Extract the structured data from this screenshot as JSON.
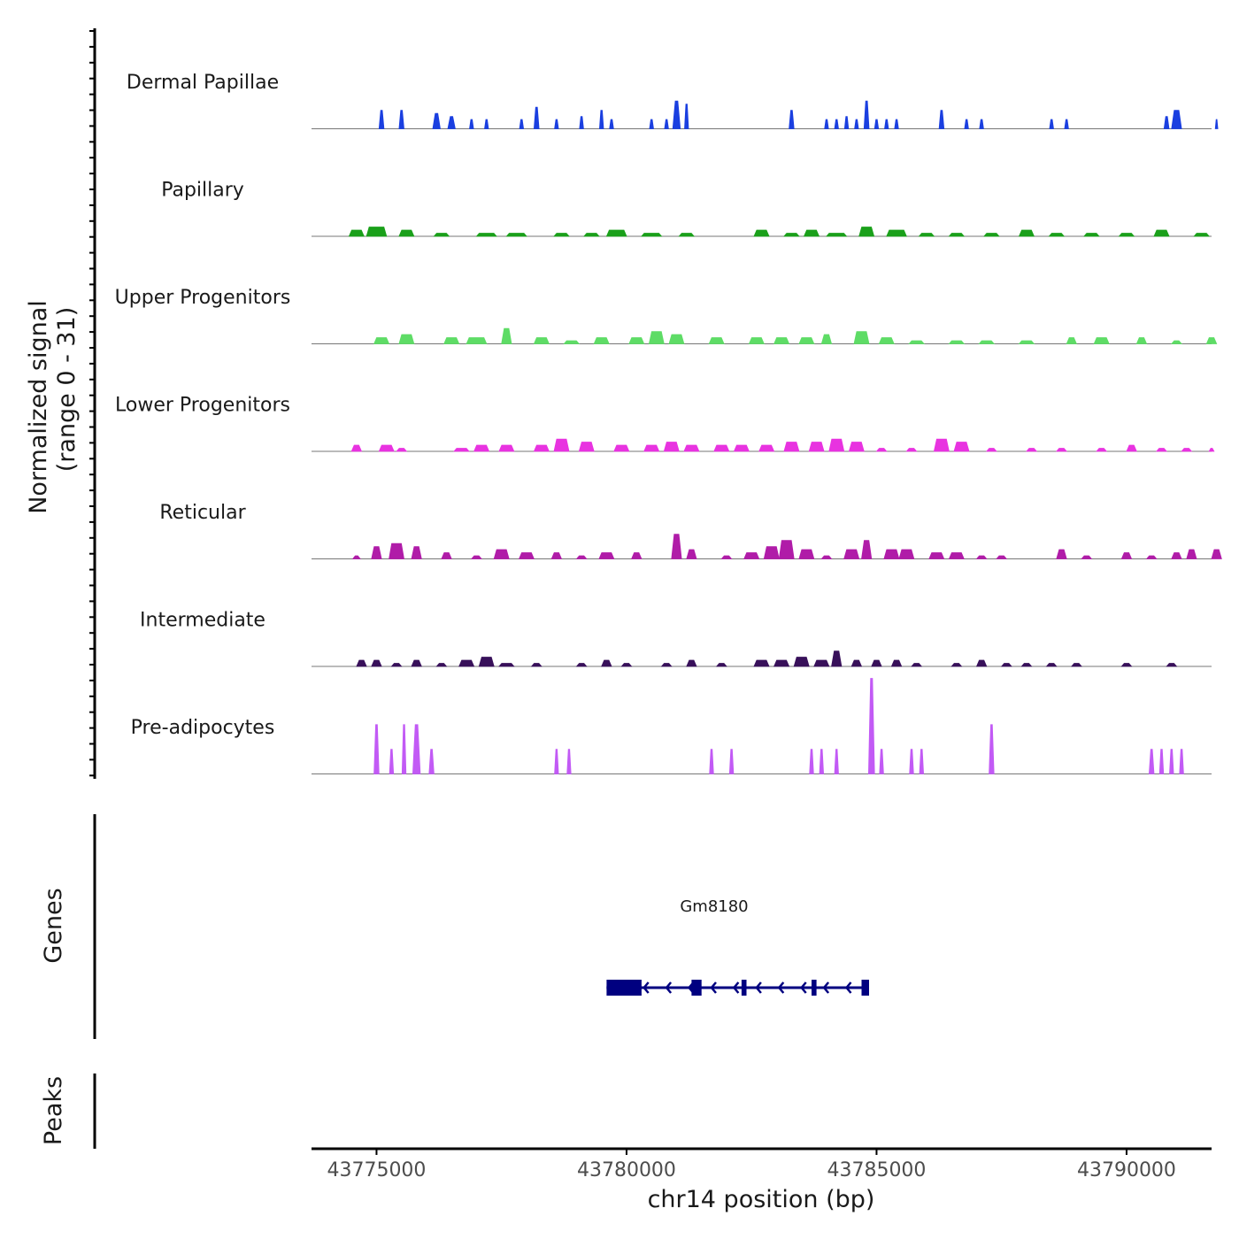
{
  "chart_data": {
    "type": "area",
    "y_axis_title": "Normalized signal",
    "y_axis_range_label": "(range 0 - 31)",
    "ylim": [
      0,
      31
    ],
    "xlabel": "chr14 position (bp)",
    "xlim": [
      43773700,
      43791700
    ],
    "x_ticks": [
      43775000,
      43780000,
      43785000,
      43790000
    ],
    "x_tick_labels": [
      "43775000",
      "43780000",
      "43785000",
      "43790000"
    ],
    "tracks": [
      {
        "name": "Dermal Papillae",
        "color": "#1a3fe0",
        "peaks": [
          [
            43775100,
            100,
            6
          ],
          [
            43775500,
            100,
            6
          ],
          [
            43776200,
            150,
            5
          ],
          [
            43776500,
            150,
            4
          ],
          [
            43776900,
            80,
            3
          ],
          [
            43777200,
            80,
            3
          ],
          [
            43777900,
            80,
            3
          ],
          [
            43778200,
            100,
            7
          ],
          [
            43778600,
            80,
            3
          ],
          [
            43779100,
            80,
            4
          ],
          [
            43779500,
            80,
            6
          ],
          [
            43779700,
            80,
            3
          ],
          [
            43780500,
            80,
            3
          ],
          [
            43780800,
            80,
            3
          ],
          [
            43781000,
            150,
            9
          ],
          [
            43781200,
            80,
            8
          ],
          [
            43783300,
            100,
            6
          ],
          [
            43784000,
            80,
            3
          ],
          [
            43784200,
            80,
            3
          ],
          [
            43784400,
            80,
            4
          ],
          [
            43784600,
            80,
            3
          ],
          [
            43784800,
            100,
            9
          ],
          [
            43785000,
            80,
            3
          ],
          [
            43785200,
            80,
            3
          ],
          [
            43785400,
            80,
            3
          ],
          [
            43786300,
            100,
            6
          ],
          [
            43786800,
            80,
            3
          ],
          [
            43787100,
            80,
            3
          ],
          [
            43788500,
            80,
            3
          ],
          [
            43788800,
            80,
            3
          ],
          [
            43790800,
            100,
            4
          ],
          [
            43791000,
            200,
            6
          ],
          [
            43791800,
            50,
            3
          ]
        ]
      },
      {
        "name": "Papillary",
        "color": "#1aa01a",
        "peaks": [
          [
            43774600,
            300,
            2
          ],
          [
            43775000,
            400,
            3
          ],
          [
            43775600,
            300,
            2
          ],
          [
            43776300,
            300,
            1
          ],
          [
            43777200,
            400,
            1
          ],
          [
            43777800,
            400,
            1
          ],
          [
            43778700,
            300,
            1
          ],
          [
            43779300,
            300,
            1
          ],
          [
            43779800,
            400,
            2
          ],
          [
            43780500,
            400,
            1
          ],
          [
            43781200,
            300,
            1
          ],
          [
            43782700,
            300,
            2
          ],
          [
            43783300,
            300,
            1
          ],
          [
            43783700,
            300,
            2
          ],
          [
            43784200,
            400,
            1
          ],
          [
            43784800,
            300,
            3
          ],
          [
            43785400,
            400,
            2
          ],
          [
            43786000,
            300,
            1
          ],
          [
            43786600,
            300,
            1
          ],
          [
            43787300,
            300,
            1
          ],
          [
            43788000,
            300,
            2
          ],
          [
            43788600,
            300,
            1
          ],
          [
            43789300,
            300,
            1
          ],
          [
            43790000,
            300,
            1
          ],
          [
            43790700,
            300,
            2
          ],
          [
            43791500,
            300,
            1
          ]
        ]
      },
      {
        "name": "Upper Progenitors",
        "color": "#5edc66",
        "peaks": [
          [
            43775100,
            300,
            2
          ],
          [
            43775600,
            300,
            3
          ],
          [
            43776500,
            300,
            2
          ],
          [
            43777000,
            400,
            2
          ],
          [
            43777600,
            200,
            5
          ],
          [
            43778300,
            300,
            2
          ],
          [
            43778900,
            300,
            1
          ],
          [
            43779500,
            300,
            2
          ],
          [
            43780200,
            300,
            2
          ],
          [
            43780600,
            300,
            4
          ],
          [
            43781000,
            300,
            3
          ],
          [
            43781800,
            300,
            2
          ],
          [
            43782600,
            300,
            2
          ],
          [
            43783100,
            300,
            2
          ],
          [
            43783600,
            300,
            2
          ],
          [
            43784000,
            200,
            3
          ],
          [
            43784700,
            300,
            4
          ],
          [
            43785200,
            300,
            2
          ],
          [
            43785800,
            300,
            1
          ],
          [
            43786600,
            300,
            1
          ],
          [
            43787200,
            300,
            1
          ],
          [
            43788000,
            300,
            1
          ],
          [
            43788900,
            200,
            2
          ],
          [
            43789500,
            300,
            2
          ],
          [
            43790300,
            200,
            2
          ],
          [
            43791000,
            200,
            1
          ],
          [
            43791700,
            200,
            2
          ]
        ]
      },
      {
        "name": "Lower Progenitors",
        "color": "#e833e0",
        "peaks": [
          [
            43774600,
            200,
            2
          ],
          [
            43775200,
            300,
            2
          ],
          [
            43775500,
            200,
            1
          ],
          [
            43776700,
            300,
            1
          ],
          [
            43777100,
            300,
            2
          ],
          [
            43777600,
            300,
            2
          ],
          [
            43778300,
            300,
            2
          ],
          [
            43778700,
            300,
            4
          ],
          [
            43779200,
            300,
            3
          ],
          [
            43779900,
            300,
            2
          ],
          [
            43780500,
            300,
            2
          ],
          [
            43780900,
            300,
            3
          ],
          [
            43781300,
            300,
            2
          ],
          [
            43781900,
            300,
            2
          ],
          [
            43782300,
            300,
            2
          ],
          [
            43782800,
            300,
            2
          ],
          [
            43783300,
            300,
            3
          ],
          [
            43783800,
            300,
            3
          ],
          [
            43784200,
            300,
            4
          ],
          [
            43784600,
            300,
            3
          ],
          [
            43785100,
            200,
            1
          ],
          [
            43785700,
            200,
            1
          ],
          [
            43786300,
            300,
            4
          ],
          [
            43786700,
            300,
            3
          ],
          [
            43787300,
            200,
            1
          ],
          [
            43788100,
            200,
            1
          ],
          [
            43788700,
            200,
            1
          ],
          [
            43789500,
            200,
            1
          ],
          [
            43790100,
            200,
            2
          ],
          [
            43790700,
            200,
            1
          ],
          [
            43791200,
            200,
            1
          ],
          [
            43791700,
            100,
            1
          ]
        ]
      },
      {
        "name": "Reticular",
        "color": "#b01ca8",
        "peaks": [
          [
            43774600,
            150,
            1
          ],
          [
            43775000,
            200,
            4
          ],
          [
            43775400,
            300,
            5
          ],
          [
            43775800,
            200,
            4
          ],
          [
            43776400,
            200,
            2
          ],
          [
            43777000,
            200,
            1
          ],
          [
            43777500,
            300,
            3
          ],
          [
            43778000,
            300,
            2
          ],
          [
            43778600,
            200,
            2
          ],
          [
            43779100,
            200,
            1
          ],
          [
            43779600,
            300,
            2
          ],
          [
            43780200,
            200,
            2
          ],
          [
            43781000,
            200,
            8
          ],
          [
            43781300,
            200,
            3
          ],
          [
            43782000,
            200,
            1
          ],
          [
            43782500,
            300,
            2
          ],
          [
            43782900,
            300,
            4
          ],
          [
            43783200,
            300,
            6
          ],
          [
            43783600,
            300,
            3
          ],
          [
            43784000,
            200,
            1
          ],
          [
            43784500,
            300,
            3
          ],
          [
            43784800,
            200,
            6
          ],
          [
            43785300,
            300,
            3
          ],
          [
            43785600,
            300,
            3
          ],
          [
            43786200,
            300,
            2
          ],
          [
            43786600,
            300,
            2
          ],
          [
            43787100,
            200,
            1
          ],
          [
            43787500,
            200,
            1
          ],
          [
            43788700,
            200,
            3
          ],
          [
            43789200,
            200,
            1
          ],
          [
            43790000,
            200,
            2
          ],
          [
            43790500,
            200,
            1
          ],
          [
            43791000,
            200,
            2
          ],
          [
            43791300,
            200,
            3
          ],
          [
            43791800,
            200,
            3
          ]
        ]
      },
      {
        "name": "Intermediate",
        "color": "#38105a",
        "peaks": [
          [
            43774700,
            200,
            2
          ],
          [
            43775000,
            200,
            2
          ],
          [
            43775400,
            200,
            1
          ],
          [
            43775800,
            200,
            2
          ],
          [
            43776300,
            200,
            1
          ],
          [
            43776800,
            300,
            2
          ],
          [
            43777200,
            300,
            3
          ],
          [
            43777600,
            300,
            1
          ],
          [
            43778200,
            200,
            1
          ],
          [
            43779100,
            200,
            1
          ],
          [
            43779600,
            200,
            2
          ],
          [
            43780000,
            200,
            1
          ],
          [
            43780800,
            200,
            1
          ],
          [
            43781300,
            200,
            2
          ],
          [
            43781900,
            200,
            1
          ],
          [
            43782700,
            300,
            2
          ],
          [
            43783100,
            300,
            2
          ],
          [
            43783500,
            300,
            3
          ],
          [
            43783900,
            300,
            2
          ],
          [
            43784200,
            200,
            5
          ],
          [
            43784600,
            200,
            2
          ],
          [
            43785000,
            200,
            2
          ],
          [
            43785400,
            200,
            2
          ],
          [
            43785800,
            200,
            1
          ],
          [
            43786600,
            200,
            1
          ],
          [
            43787100,
            200,
            2
          ],
          [
            43787600,
            200,
            1
          ],
          [
            43788000,
            200,
            1
          ],
          [
            43788500,
            200,
            1
          ],
          [
            43789000,
            200,
            1
          ],
          [
            43790000,
            200,
            1
          ],
          [
            43790900,
            200,
            1
          ]
        ]
      },
      {
        "name": "Pre-adipocytes",
        "color": "#c25af5",
        "peaks": [
          [
            43775000,
            100,
            16
          ],
          [
            43775300,
            80,
            8
          ],
          [
            43775550,
            80,
            16
          ],
          [
            43775800,
            150,
            16
          ],
          [
            43776100,
            100,
            8
          ],
          [
            43778600,
            80,
            8
          ],
          [
            43778850,
            80,
            8
          ],
          [
            43781700,
            80,
            8
          ],
          [
            43782100,
            80,
            8
          ],
          [
            43783700,
            80,
            8
          ],
          [
            43783900,
            80,
            8
          ],
          [
            43784200,
            80,
            8
          ],
          [
            43784900,
            120,
            31
          ],
          [
            43785100,
            80,
            8
          ],
          [
            43785700,
            80,
            8
          ],
          [
            43785900,
            80,
            8
          ],
          [
            43787300,
            100,
            16
          ],
          [
            43790500,
            100,
            8
          ],
          [
            43790700,
            80,
            8
          ],
          [
            43790900,
            80,
            8
          ],
          [
            43791100,
            80,
            8
          ]
        ]
      }
    ],
    "genes_track_label": "Genes",
    "peaks_track_label": "Peaks",
    "gene": {
      "name": "Gm8180",
      "strand": "-",
      "start": 43779600,
      "end": 43784850,
      "color": "#000080",
      "exons": [
        [
          43779600,
          43780300
        ],
        [
          43781300,
          43781500
        ],
        [
          43782300,
          43782400
        ],
        [
          43783700,
          43783800
        ],
        [
          43784700,
          43784850
        ]
      ]
    }
  }
}
